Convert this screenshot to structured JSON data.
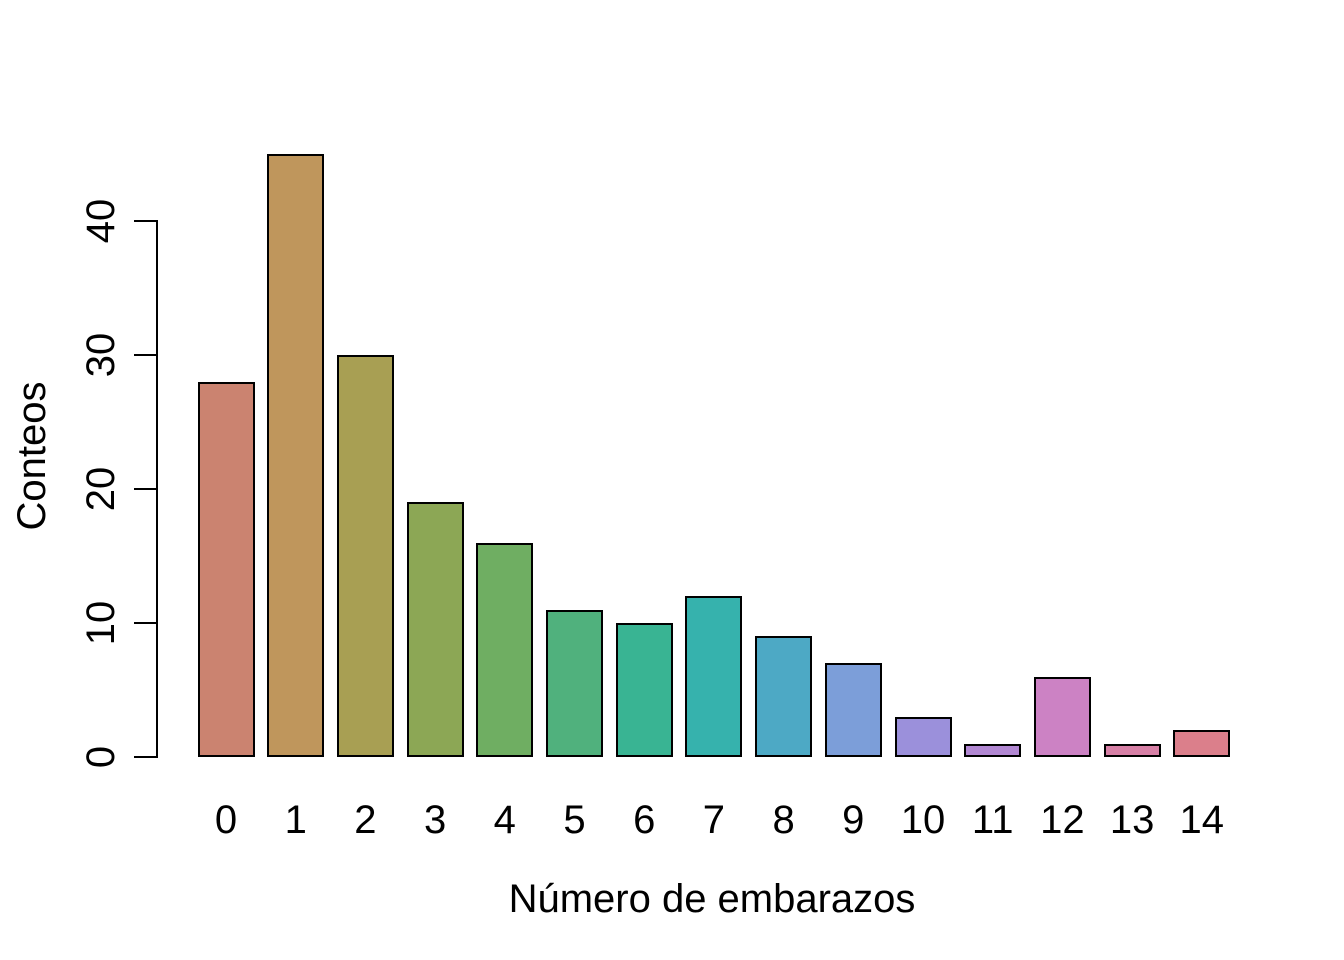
{
  "chart_data": {
    "type": "bar",
    "title": "",
    "xlabel": "Número de embarazos",
    "ylabel": "Conteos",
    "categories": [
      "0",
      "1",
      "2",
      "3",
      "4",
      "5",
      "6",
      "7",
      "8",
      "9",
      "10",
      "11",
      "12",
      "13",
      "14"
    ],
    "values": [
      28,
      45,
      30,
      19,
      16,
      11,
      10,
      12,
      9,
      7,
      3,
      1,
      6,
      1,
      2
    ],
    "y_ticks": [
      0,
      10,
      20,
      30,
      40
    ],
    "ylim": [
      0,
      45
    ],
    "grid": false,
    "legend_position": "none",
    "background_color": "#ffffff",
    "axis_color": "#000000",
    "text_color": "#000000",
    "bar_border_color": "#000000",
    "bar_colors": [
      "#CB8370",
      "#BF965C",
      "#A89F53",
      "#8CA755",
      "#6FAE62",
      "#50B17D",
      "#39B493",
      "#36B2AD",
      "#4DA9C5",
      "#7C9ED9",
      "#9B90DB",
      "#B288D3",
      "#CC82C4",
      "#D780A6",
      "#DB7F8B"
    ]
  }
}
